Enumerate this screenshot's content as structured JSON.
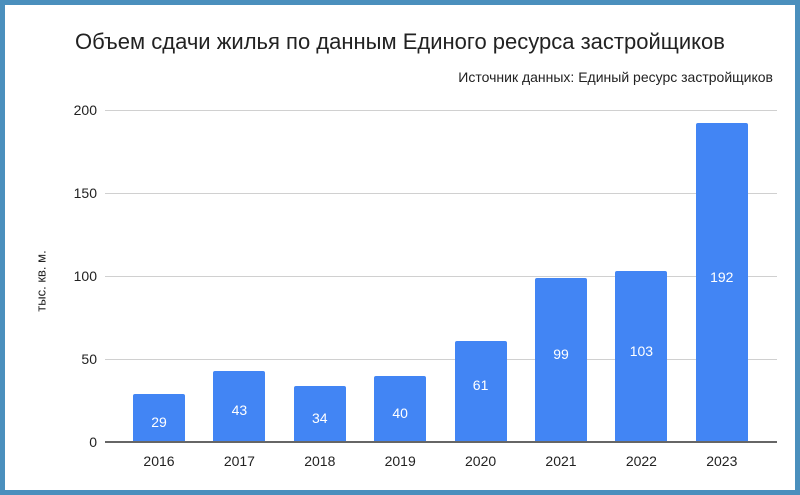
{
  "chart_data": {
    "type": "bar",
    "title": "Объем сдачи жилья по данным Единого ресурса застройщиков",
    "subtitle": "Источник данных: Единый ресурс застройщиков",
    "xlabel": "",
    "ylabel": "тыс. кв. м.",
    "categories": [
      "2016",
      "2017",
      "2018",
      "2019",
      "2020",
      "2021",
      "2022",
      "2023"
    ],
    "values": [
      29,
      43,
      34,
      40,
      61,
      99,
      103,
      192
    ],
    "data_labels": [
      "29",
      "43",
      "34",
      "40",
      "61",
      "99",
      "103",
      "192"
    ],
    "yticks": [
      "0",
      "50",
      "100",
      "150",
      "200"
    ],
    "ylim": [
      0,
      200
    ],
    "grid": true,
    "legend": "none",
    "bar_color": "#4285f4"
  },
  "frame": {
    "border_color": "#4a8fbd",
    "background": "#ffffff"
  }
}
